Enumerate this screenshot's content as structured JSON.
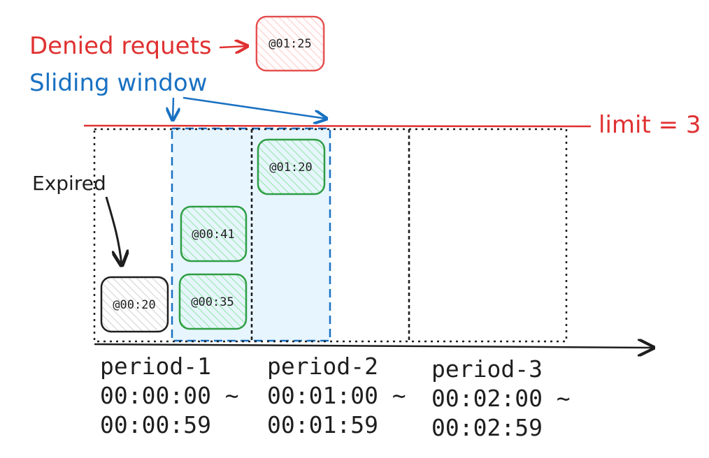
{
  "annotations": {
    "denied_label": "Denied requets",
    "sliding_window_label": "Sliding window",
    "limit_label": "limit = 3",
    "expired_label": "Expired"
  },
  "requests": {
    "denied": "@01:25",
    "expired": "@00:20",
    "accepted_1": "@00:35",
    "accepted_2": "@00:41",
    "accepted_3": "@01:20"
  },
  "periods": [
    {
      "name": "period-1",
      "start": "00:00:00 ~",
      "end": "00:00:59"
    },
    {
      "name": "period-2",
      "start": "00:01:00 ~",
      "end": "00:01:59"
    },
    {
      "name": "period-3",
      "start": "00:02:00 ~",
      "end": "00:02:59"
    }
  ],
  "colors": {
    "limit_line": "#e03131",
    "denied": "#e03131",
    "window": "#1971c2",
    "window_fill": "#e7f5ff",
    "accepted": "#2f9e44",
    "expired": "#1e1e1e"
  }
}
